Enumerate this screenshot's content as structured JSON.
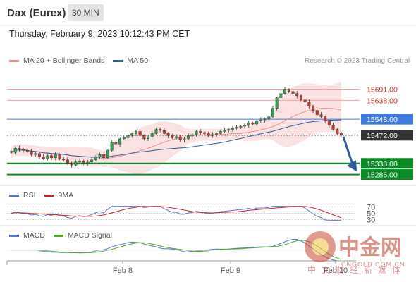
{
  "header": {
    "title": "Dax (Eurex)",
    "timeframe": "30 MIN"
  },
  "datetime": "Thursday, February 9, 2023 10:12:43 PM CET",
  "legend": {
    "ma20": {
      "label": "MA 20 + Bollinger Bands",
      "color": "#f28b8b"
    },
    "ma50": {
      "label": "MA 50",
      "color": "#2e5c9e"
    }
  },
  "credit": "Research © 2023 Trading Central",
  "rsi_legend": {
    "rsi": "RSI",
    "rsi_color": "#5577cc",
    "ma9": "9MA",
    "ma9_color": "#cc2222"
  },
  "macd_legend": {
    "macd": "MACD",
    "macd_color": "#5577cc",
    "signal": "MACD Signal",
    "signal_color": "#55aa22"
  },
  "watermark": {
    "cn": "中金网",
    "en": "CNGOLD.COM.CN",
    "sub": "中文财经新媒体"
  },
  "chart_data": {
    "type": "candlestick",
    "price_axis": {
      "min": 15250,
      "max": 15780
    },
    "levels": [
      {
        "value": 15691.0,
        "label": "15691.00",
        "kind": "resistance",
        "color": "#f2a0a0"
      },
      {
        "value": 15638.0,
        "label": "15638.00",
        "kind": "resistance",
        "color": "#f2a0a0"
      },
      {
        "value": 15548.0,
        "label": "15548.00",
        "kind": "pivot",
        "color": "#3d7de0"
      },
      {
        "value": 15472.0,
        "label": "15472.00",
        "kind": "last",
        "color": "#333333"
      },
      {
        "value": 15338.0,
        "label": "15338.00",
        "kind": "support",
        "color": "#0a8a22"
      },
      {
        "value": 15285.0,
        "label": "15285.00",
        "kind": "support",
        "color": "#0a8a22"
      }
    ],
    "x_labels": [
      "Feb 8",
      "Feb 9",
      "Feb 10"
    ],
    "close": [
      15390,
      15410,
      15405,
      15400,
      15395,
      15380,
      15385,
      15370,
      15360,
      15375,
      15365,
      15380,
      15360,
      15355,
      15340,
      15330,
      15345,
      15350,
      15340,
      15345,
      15355,
      15370,
      15380,
      15365,
      15400,
      15440,
      15430,
      15455,
      15460,
      15470,
      15480,
      15490,
      15470,
      15455,
      15465,
      15480,
      15500,
      15495,
      15480,
      15470,
      15460,
      15465,
      15450,
      15455,
      15470,
      15475,
      15490,
      15485,
      15480,
      15470,
      15475,
      15480,
      15490,
      15495,
      15500,
      15505,
      15510,
      15515,
      15520,
      15530,
      15525,
      15540,
      15545,
      15550,
      15560,
      15600,
      15650,
      15670,
      15690,
      15680,
      15670,
      15660,
      15640,
      15630,
      15610,
      15590,
      15570,
      15560,
      15540,
      15520,
      15500,
      15480,
      15472
    ],
    "rsi_levels": [
      70,
      50,
      30
    ],
    "projection": {
      "from": 15472,
      "to": 15300
    }
  }
}
